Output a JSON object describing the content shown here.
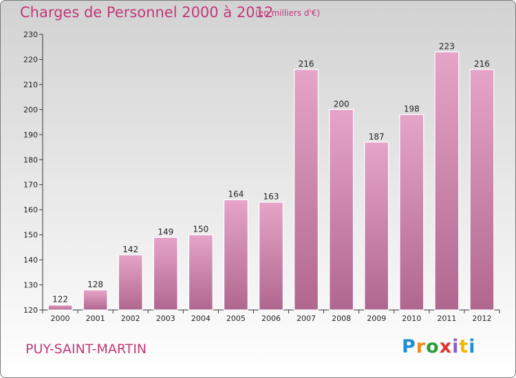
{
  "header": {
    "title": "Charges de Personnel 2000 à 2012",
    "subtitle": "(en milliers d'€)"
  },
  "footer": {
    "town": "PUY-SAINT-MARTIN",
    "logo_text": "Proxiti"
  },
  "colors": {
    "bar": "#c0397a",
    "title": "#c0397a"
  },
  "chart_data": {
    "type": "bar",
    "title": "Charges de Personnel 2000 à 2012",
    "subtitle": "(en milliers d'€)",
    "xlabel": "",
    "ylabel": "",
    "categories": [
      "2000",
      "2001",
      "2002",
      "2003",
      "2004",
      "2005",
      "2006",
      "2007",
      "2008",
      "2009",
      "2010",
      "2011",
      "2012"
    ],
    "values": [
      122,
      128,
      142,
      149,
      150,
      164,
      163,
      216,
      200,
      187,
      198,
      223,
      216
    ],
    "ylim": [
      120,
      230
    ],
    "yticks": [
      120,
      130,
      140,
      150,
      160,
      170,
      180,
      190,
      200,
      210,
      220,
      230
    ],
    "grid": false,
    "legend": "none"
  }
}
